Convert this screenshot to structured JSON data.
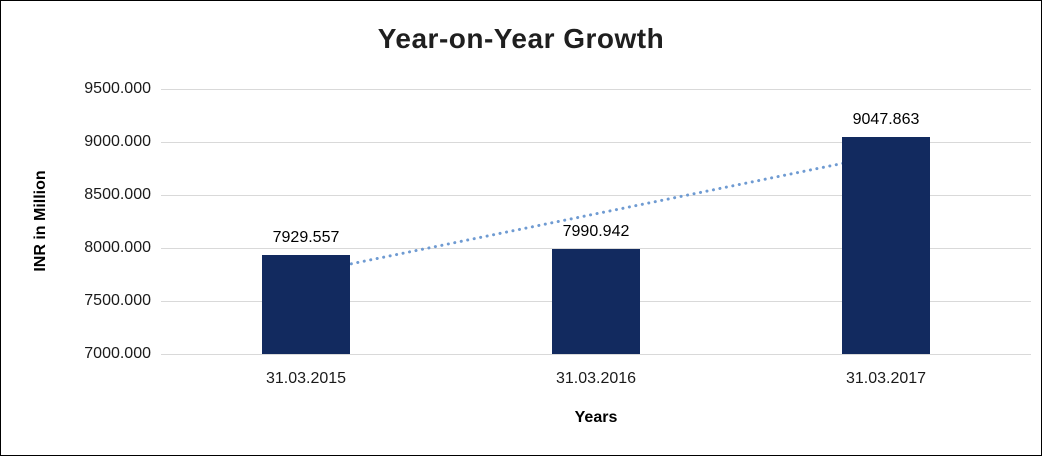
{
  "chart_data": {
    "type": "bar",
    "title": "Year-on-Year Growth",
    "categories": [
      "31.03.2015",
      "31.03.2016",
      "31.03.2017"
    ],
    "values": [
      7929.557,
      7990.942,
      9047.863
    ],
    "data_labels": [
      "7929.557",
      "7990.942",
      "9047.863"
    ],
    "xlabel": "Years",
    "ylabel": "INR in Million",
    "ylim": [
      7000,
      9500
    ],
    "ytick_step": 500,
    "ytick_labels": [
      "7000.000",
      "7500.000",
      "8000.000",
      "8500.000",
      "9000.000",
      "9500.000"
    ],
    "grid": true,
    "legend": "none",
    "bar_color": "#122a5f",
    "grid_color": "#d9d9d9",
    "trendline": {
      "type": "linear",
      "style": "dotted",
      "color": "#6f9bd2"
    }
  }
}
